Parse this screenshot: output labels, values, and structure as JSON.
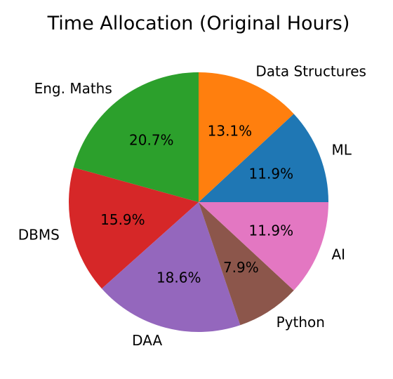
{
  "chart_data": {
    "type": "pie",
    "title": "Time Allocation (Original Hours)",
    "categories": [
      "ML",
      "Data Structures",
      "Eng. Maths",
      "DBMS",
      "DAA",
      "Python",
      "AI"
    ],
    "values": [
      11.9,
      13.1,
      20.7,
      15.9,
      18.6,
      7.9,
      11.9
    ],
    "percent_labels": [
      "11.9%",
      "13.1%",
      "20.7%",
      "15.9%",
      "18.6%",
      "7.9%",
      "11.9%"
    ],
    "colors": [
      "#1f77b4",
      "#ff7f0e",
      "#2ca02c",
      "#d62728",
      "#9467bd",
      "#8c564b",
      "#e377c2"
    ],
    "start_angle_deg": 0,
    "direction": "counterclockwise",
    "legend": "none",
    "grid": false
  }
}
